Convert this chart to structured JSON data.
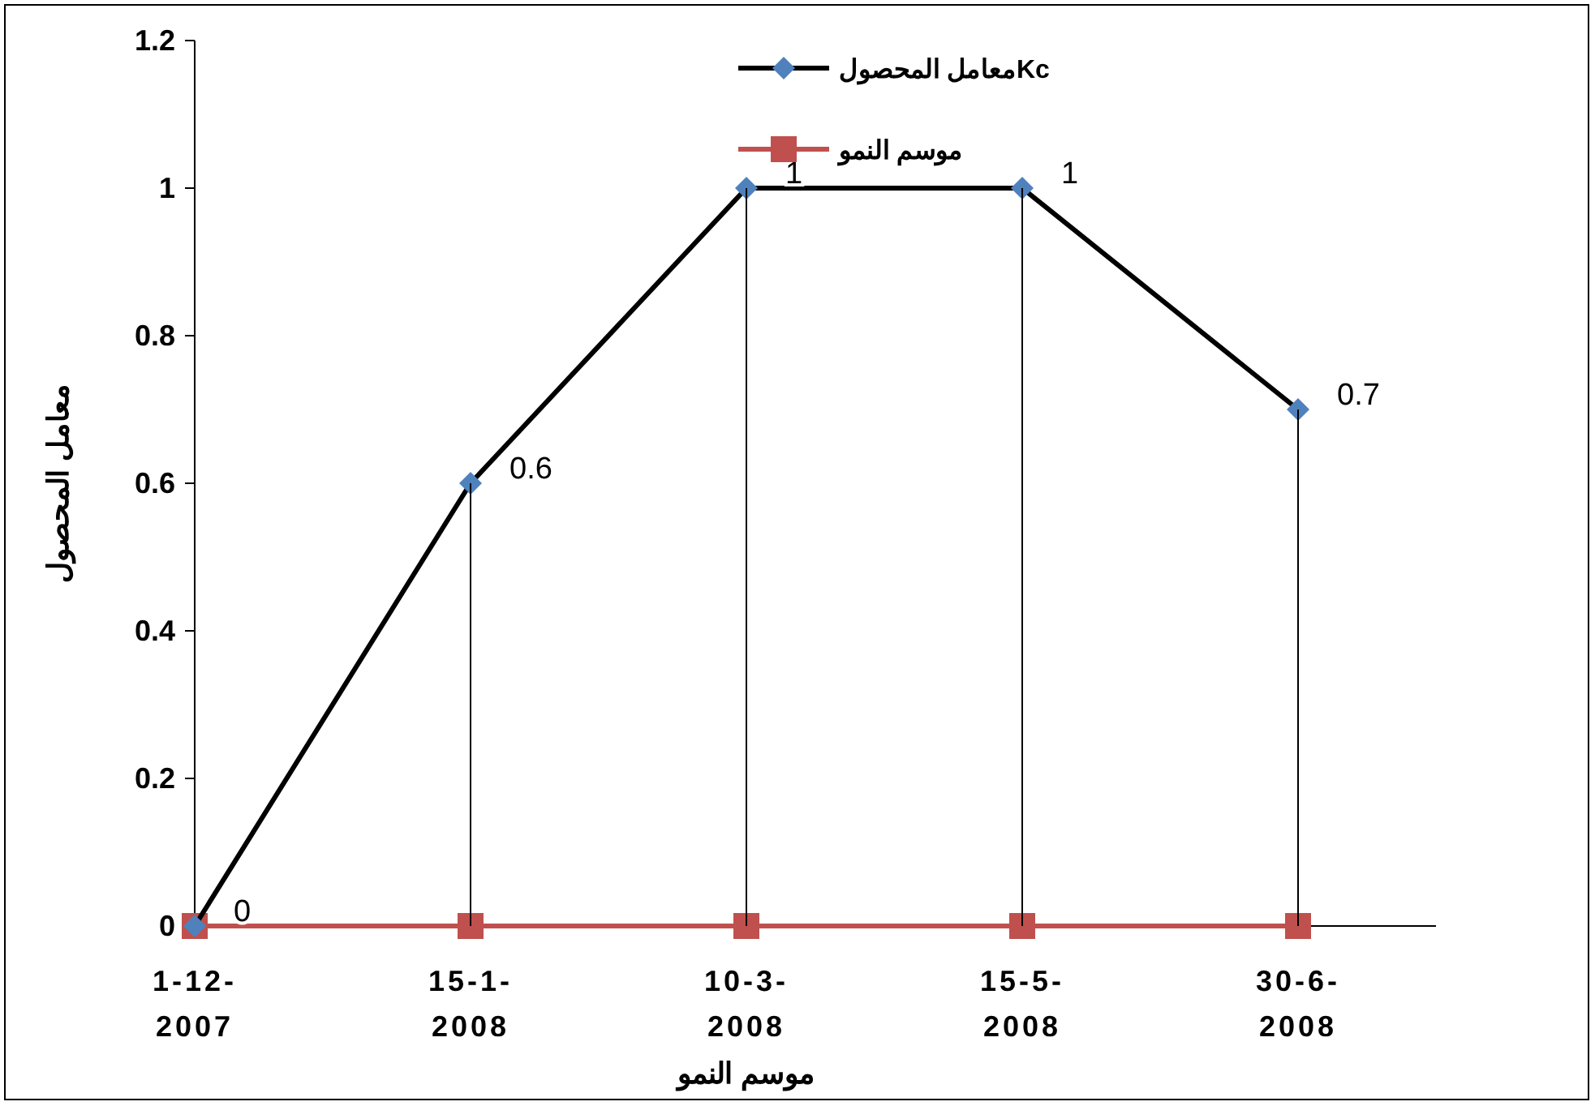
{
  "chart_data": {
    "type": "line",
    "xlabel": "موسم النمو",
    "ylabel": "معامل المحصول",
    "categories": [
      "1-12-2007",
      "15-1-2008",
      "10-3-2008",
      "15-5-2008",
      "30-6-2008"
    ],
    "series": [
      {
        "name": "معامل المحصولKc",
        "color": "#000000",
        "marker": "diamond",
        "values": [
          0,
          0.6,
          1,
          1,
          0.7
        ],
        "value_labels": [
          "0",
          "0.6",
          "1",
          "1",
          "0.7"
        ],
        "errors": [
          null,
          [
            0,
            0.6
          ],
          [
            0,
            1
          ],
          [
            0,
            1
          ],
          [
            0,
            0.7
          ]
        ]
      },
      {
        "name": "موسم النمو",
        "color": "#c0504d",
        "marker": "square",
        "values": [
          0,
          0,
          0,
          0,
          0
        ]
      }
    ],
    "ylim": [
      0,
      1.2
    ],
    "yticks": [
      0,
      0.2,
      0.4,
      0.6,
      0.8,
      1,
      1.2
    ],
    "grid": false,
    "legend": "top right",
    "line_style": "solid"
  }
}
